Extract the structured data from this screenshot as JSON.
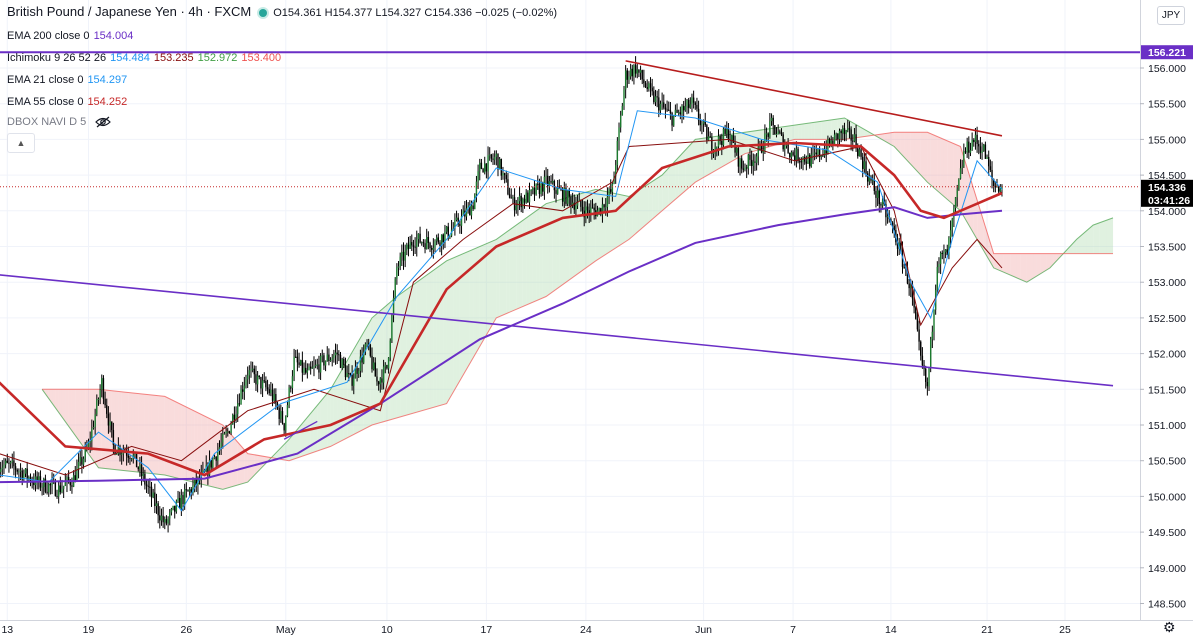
{
  "header": {
    "symbol": "British Pound / Japanese Yen · 4h · FXCM",
    "ohlc": "O154.361  H154.377  L154.327  C154.336  −0.025 (−0.02%)",
    "currency": "JPY"
  },
  "indicators": [
    {
      "label": "EMA 200 close 0",
      "values": [
        "154.004"
      ],
      "colors": [
        "#6a2fc6"
      ]
    },
    {
      "label": "Ichimoku 9 26 52 26",
      "values": [
        "154.484",
        "153.235",
        "152.972",
        "153.400"
      ],
      "colors": [
        "#2196f3",
        "#880e0e",
        "#43a047",
        "#ef5350"
      ]
    },
    {
      "label": "EMA 21 close 0",
      "values": [
        "154.297"
      ],
      "colors": [
        "#2196f3"
      ]
    },
    {
      "label": "EMA 55 close 0",
      "values": [
        "154.252"
      ],
      "colors": [
        "#c62828"
      ]
    },
    {
      "label": "DBOX NAVI D 5",
      "values": [],
      "colors": []
    }
  ],
  "colors": {
    "up": "#26a69a",
    "down": "#000000",
    "candle_up_body": "#1b7a2e",
    "ema200": "#6a2fc6",
    "ema55": "#c62828",
    "ema21": "#2196f3",
    "kijun": "#880e0e",
    "cloud_bull": "#a5d6a7",
    "cloud_bear": "#ef9a9a",
    "trendline_red": "#b71c1c",
    "trendline_purple": "#6a2fc6",
    "axis_text": "#131722"
  },
  "chart_data": {
    "type": "candlestick",
    "title": "British Pound / Japanese Yen · 4h · FXCM",
    "ylim": [
      148.3,
      156.75
    ],
    "y_ticks": [
      148.5,
      149.0,
      149.5,
      150.0,
      150.5,
      151.0,
      151.5,
      152.0,
      152.5,
      153.0,
      153.5,
      154.0,
      154.5,
      155.0,
      155.5,
      156.0
    ],
    "y_tick_labels": [
      "148.500",
      "149.000",
      "149.500",
      "150.000",
      "150.500",
      "151.000",
      "151.500",
      "152.000",
      "152.500",
      "153.000",
      "153.500",
      "154.000",
      "154.500",
      "155.000",
      "155.500",
      "156.000"
    ],
    "x_tick_labels": [
      "13",
      "19",
      "26",
      "May",
      "10",
      "17",
      "24",
      "Jun",
      "7",
      "14",
      "21",
      "25"
    ],
    "bars_per_day": 6,
    "last_price": 154.336,
    "last_price_label": "154.336",
    "countdown_label": "03:41:26",
    "horizontal_line": 156.221,
    "horizontal_line_label": "156.221",
    "close_path": [
      [
        0,
        150.45
      ],
      [
        10,
        150.4
      ],
      [
        22,
        150.2
      ],
      [
        36,
        150.1
      ],
      [
        45,
        150.25
      ],
      [
        54,
        150.7
      ],
      [
        62,
        151.6
      ],
      [
        69,
        150.7
      ],
      [
        80,
        150.6
      ],
      [
        90,
        150.1
      ],
      [
        100,
        149.6
      ],
      [
        110,
        149.95
      ],
      [
        124,
        150.3
      ],
      [
        138,
        150.9
      ],
      [
        150,
        151.75
      ],
      [
        164,
        151.45
      ],
      [
        172,
        151.0
      ],
      [
        178,
        151.9
      ],
      [
        186,
        151.7
      ],
      [
        196,
        151.9
      ],
      [
        204,
        152.0
      ],
      [
        212,
        151.6
      ],
      [
        222,
        152.1
      ],
      [
        228,
        151.6
      ],
      [
        234,
        151.8
      ],
      [
        240,
        153.2
      ],
      [
        250,
        153.6
      ],
      [
        262,
        153.55
      ],
      [
        274,
        153.75
      ],
      [
        286,
        154.1
      ],
      [
        290,
        154.6
      ],
      [
        300,
        154.75
      ],
      [
        310,
        154.1
      ],
      [
        320,
        154.2
      ],
      [
        330,
        154.4
      ],
      [
        342,
        154.2
      ],
      [
        354,
        154.0
      ],
      [
        362,
        154.0
      ],
      [
        370,
        154.3
      ],
      [
        378,
        155.9
      ],
      [
        384,
        156.0
      ],
      [
        394,
        155.6
      ],
      [
        406,
        155.3
      ],
      [
        418,
        155.5
      ],
      [
        430,
        154.9
      ],
      [
        440,
        155.1
      ],
      [
        448,
        154.6
      ],
      [
        458,
        154.8
      ],
      [
        466,
        155.2
      ],
      [
        478,
        154.8
      ],
      [
        490,
        154.7
      ],
      [
        500,
        154.9
      ],
      [
        508,
        155.1
      ],
      [
        516,
        155.0
      ],
      [
        524,
        154.5
      ],
      [
        540,
        153.7
      ],
      [
        550,
        152.9
      ],
      [
        556,
        151.9
      ],
      [
        560,
        151.5
      ],
      [
        566,
        153.3
      ],
      [
        572,
        153.4
      ],
      [
        582,
        154.8
      ],
      [
        588,
        155.0
      ],
      [
        594,
        154.85
      ],
      [
        600,
        154.35
      ],
      [
        605,
        154.336
      ]
    ],
    "ema200": [
      [
        0,
        150.2
      ],
      [
        60,
        150.22
      ],
      [
        124,
        150.25
      ],
      [
        180,
        150.6
      ],
      [
        230,
        151.3
      ],
      [
        290,
        152.2
      ],
      [
        340,
        152.7
      ],
      [
        380,
        153.15
      ],
      [
        420,
        153.55
      ],
      [
        470,
        153.8
      ],
      [
        510,
        153.95
      ],
      [
        540,
        154.05
      ],
      [
        560,
        153.9
      ],
      [
        580,
        153.95
      ],
      [
        605,
        154.0
      ]
    ],
    "ema55": [
      [
        0,
        151.6
      ],
      [
        40,
        150.7
      ],
      [
        90,
        150.6
      ],
      [
        124,
        150.3
      ],
      [
        160,
        150.8
      ],
      [
        200,
        151.0
      ],
      [
        230,
        151.3
      ],
      [
        270,
        152.9
      ],
      [
        300,
        153.5
      ],
      [
        340,
        153.9
      ],
      [
        372,
        154.0
      ],
      [
        400,
        154.6
      ],
      [
        440,
        154.9
      ],
      [
        480,
        154.95
      ],
      [
        520,
        154.9
      ],
      [
        540,
        154.5
      ],
      [
        556,
        154.0
      ],
      [
        570,
        153.9
      ],
      [
        590,
        154.1
      ],
      [
        605,
        154.25
      ]
    ],
    "ema21": [
      [
        0,
        150.3
      ],
      [
        30,
        150.2
      ],
      [
        60,
        150.9
      ],
      [
        90,
        150.4
      ],
      [
        110,
        149.8
      ],
      [
        130,
        150.6
      ],
      [
        170,
        151.3
      ],
      [
        210,
        151.6
      ],
      [
        240,
        152.8
      ],
      [
        270,
        153.6
      ],
      [
        300,
        154.6
      ],
      [
        340,
        154.3
      ],
      [
        372,
        154.2
      ],
      [
        385,
        155.4
      ],
      [
        420,
        155.3
      ],
      [
        460,
        155.0
      ],
      [
        500,
        154.85
      ],
      [
        530,
        154.4
      ],
      [
        550,
        153.0
      ],
      [
        562,
        152.5
      ],
      [
        575,
        153.6
      ],
      [
        590,
        154.7
      ],
      [
        605,
        154.3
      ]
    ],
    "kijun": [
      [
        0,
        150.6
      ],
      [
        40,
        150.3
      ],
      [
        80,
        150.7
      ],
      [
        110,
        150.5
      ],
      [
        150,
        151.2
      ],
      [
        190,
        151.5
      ],
      [
        230,
        151.2
      ],
      [
        250,
        153.0
      ],
      [
        280,
        153.6
      ],
      [
        310,
        154.1
      ],
      [
        340,
        154.0
      ],
      [
        370,
        154.4
      ],
      [
        380,
        154.9
      ],
      [
        440,
        155.0
      ],
      [
        480,
        154.7
      ],
      [
        520,
        154.9
      ],
      [
        540,
        154.0
      ],
      [
        556,
        152.4
      ],
      [
        575,
        153.2
      ],
      [
        590,
        153.6
      ],
      [
        605,
        153.2
      ]
    ],
    "senkou_a": [
      [
        26,
        151.5
      ],
      [
        60,
        150.4
      ],
      [
        100,
        150.3
      ],
      [
        135,
        150.1
      ],
      [
        150,
        150.2
      ],
      [
        175,
        150.8
      ],
      [
        200,
        151.5
      ],
      [
        225,
        152.5
      ],
      [
        240,
        152.8
      ],
      [
        270,
        153.3
      ],
      [
        300,
        153.6
      ],
      [
        330,
        154.1
      ],
      [
        360,
        154.3
      ],
      [
        380,
        154.2
      ],
      [
        400,
        154.5
      ],
      [
        420,
        155.0
      ],
      [
        450,
        155.1
      ],
      [
        480,
        155.2
      ],
      [
        510,
        155.3
      ],
      [
        540,
        154.9
      ],
      [
        560,
        154.4
      ],
      [
        580,
        154.0
      ],
      [
        600,
        153.2
      ],
      [
        620,
        153.0
      ],
      [
        634,
        153.2
      ],
      [
        650,
        153.6
      ],
      [
        660,
        153.8
      ],
      [
        672,
        153.9
      ]
    ],
    "senkou_b": [
      [
        26,
        151.5
      ],
      [
        60,
        151.5
      ],
      [
        100,
        151.4
      ],
      [
        135,
        151.0
      ],
      [
        150,
        150.6
      ],
      [
        175,
        150.5
      ],
      [
        200,
        150.7
      ],
      [
        225,
        151.0
      ],
      [
        240,
        151.1
      ],
      [
        270,
        151.3
      ],
      [
        300,
        152.5
      ],
      [
        330,
        152.8
      ],
      [
        360,
        153.3
      ],
      [
        380,
        153.6
      ],
      [
        400,
        154.0
      ],
      [
        420,
        154.4
      ],
      [
        450,
        154.8
      ],
      [
        480,
        155.0
      ],
      [
        510,
        155.0
      ],
      [
        540,
        155.1
      ],
      [
        560,
        155.1
      ],
      [
        580,
        154.9
      ],
      [
        600,
        153.4
      ],
      [
        620,
        153.4
      ],
      [
        634,
        153.4
      ],
      [
        650,
        153.4
      ],
      [
        660,
        153.4
      ],
      [
        672,
        153.4
      ]
    ],
    "trendline_red": {
      "from": [
        378,
        156.1
      ],
      "to": [
        605,
        155.05
      ]
    },
    "trendline_purple": {
      "from": [
        -20,
        153.15
      ],
      "to": [
        672,
        151.55
      ]
    },
    "trendline_small": {
      "from": [
        172,
        150.8
      ],
      "to": [
        192,
        151.05
      ]
    }
  }
}
